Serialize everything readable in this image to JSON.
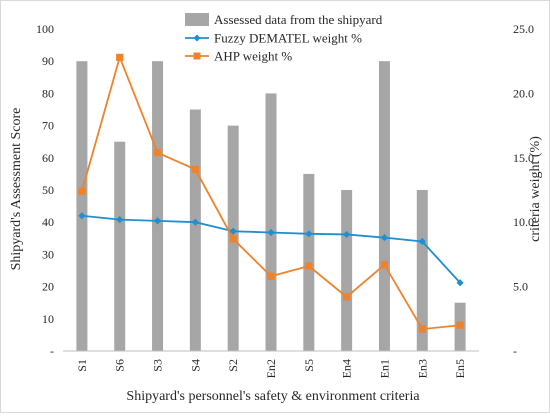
{
  "chart_data": {
    "type": "bar+line",
    "title": "",
    "categories": [
      "S1",
      "S6",
      "S3",
      "S4",
      "S2",
      "En2",
      "S5",
      "En4",
      "En1",
      "En3",
      "En5"
    ],
    "xlabel": "Shipyard's personnel's safety & environment criteria",
    "ylabel_left": "Shipyard's Assessment Score",
    "ylabel_right": "criteria weight (%)",
    "y_left": {
      "min": 0,
      "max": 100,
      "step": 10,
      "ticks": [
        "-",
        "10",
        "20",
        "30",
        "40",
        "50",
        "60",
        "70",
        "80",
        "90",
        "100"
      ]
    },
    "y_right": {
      "min": 0,
      "max": 25,
      "step": 5,
      "ticks": [
        "-",
        "5.0",
        "10.0",
        "15.0",
        "20.0",
        "25.0"
      ]
    },
    "series": [
      {
        "name": "Assessed data from the shipyard",
        "kind": "bar",
        "axis": "left",
        "color": "#a6a6a6",
        "values": [
          90,
          65,
          90,
          75,
          70,
          80,
          55,
          50,
          90,
          50,
          15
        ]
      },
      {
        "name": "Fuzzy DEMATEL weight %",
        "kind": "line",
        "marker": "diamond",
        "axis": "right",
        "color": "#1f8fd0",
        "values": [
          10.5,
          10.2,
          10.1,
          10.0,
          9.3,
          9.2,
          9.1,
          9.05,
          8.8,
          8.5,
          5.3
        ]
      },
      {
        "name": "AHP weight %",
        "kind": "line",
        "marker": "square",
        "axis": "right",
        "color": "#f0822a",
        "values": [
          12.4,
          22.8,
          15.4,
          14.1,
          8.7,
          5.8,
          6.6,
          4.2,
          6.7,
          1.7,
          2.0
        ]
      }
    ],
    "legend_position": "top-center",
    "grid": false
  }
}
